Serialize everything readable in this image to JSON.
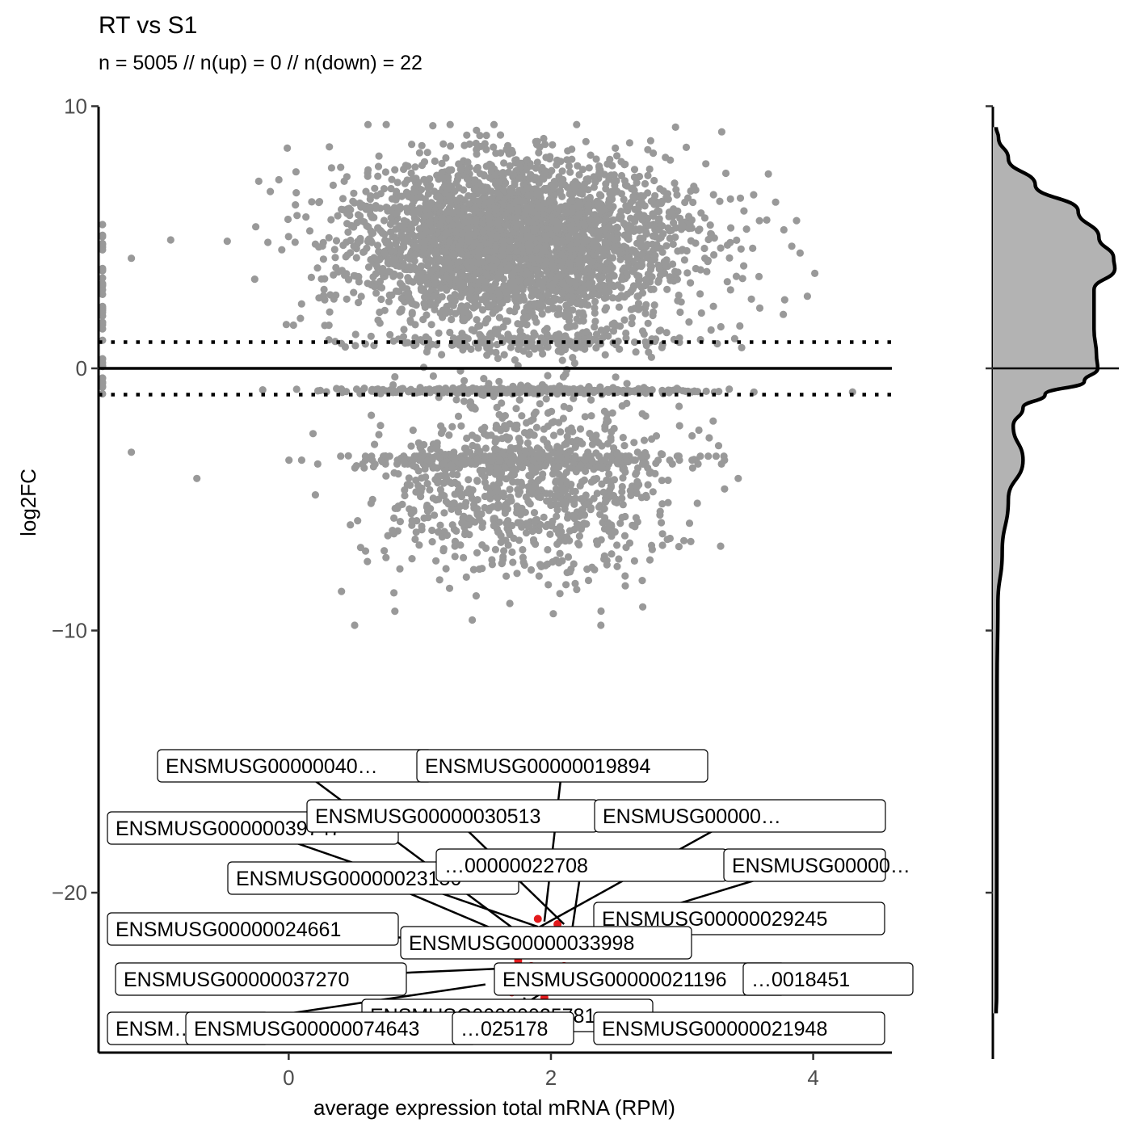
{
  "chart_data": {
    "type": "scatter",
    "title": "RT vs S1",
    "subtitle": "n = 5005 // n(up) = 0 // n(down) = 22",
    "xlabel": "average expression total mRNA (RPM)",
    "ylabel": "log2FC",
    "xlim": [
      -1.45,
      4.6
    ],
    "ylim": [
      -26.1,
      10.6
    ],
    "x_ticks": [
      0,
      2,
      4
    ],
    "y_ticks": [
      -20,
      -10,
      0,
      10
    ],
    "x_tick_labels": [
      "0",
      "2",
      "4"
    ],
    "y_tick_labels": [
      "10",
      "0",
      "−10",
      "−20"
    ],
    "grid": false,
    "reference_lines": {
      "solid": [
        0
      ],
      "dotted": [
        1,
        -1
      ]
    },
    "colors": {
      "not_significant": "#999999",
      "down": "#e31a1c",
      "density_fill": "#b3b3b3",
      "line": "#000000"
    },
    "background_points": {
      "n": 5005,
      "cloud_up": {
        "center_x": 1.75,
        "center_y": 4.8,
        "sd_x": 0.65,
        "sd_y": 1.6
      },
      "cloud_down": {
        "center_x": 1.8,
        "center_y": -4.5,
        "sd_x": 0.55,
        "sd_y": 1.8
      },
      "examples": [
        {
          "x": 2.95,
          "y": 9.2
        },
        {
          "x": 2.6,
          "y": 8.6
        },
        {
          "x": 3.9,
          "y": 4.4
        },
        {
          "x": 1.4,
          "y": -9.6
        },
        {
          "x": 2.7,
          "y": -9.1
        },
        {
          "x": -1.2,
          "y": 4.2
        },
        {
          "x": -1.2,
          "y": -3.2
        },
        {
          "x": -0.7,
          "y": -4.2
        },
        {
          "x": 4.3,
          "y": -0.9
        },
        {
          "x": -0.9,
          "y": 4.9
        }
      ]
    },
    "significant_points": [
      {
        "x": 1.9,
        "y": -21.0
      },
      {
        "x": 2.05,
        "y": -21.2
      },
      {
        "x": 1.75,
        "y": -22.6
      },
      {
        "x": 1.85,
        "y": -22.8
      },
      {
        "x": 2.1,
        "y": -22.8
      },
      {
        "x": 1.6,
        "y": -23.4
      },
      {
        "x": 1.7,
        "y": -23.8
      },
      {
        "x": 2.25,
        "y": -23.2
      },
      {
        "x": 1.95,
        "y": -24.0
      },
      {
        "x": 2.3,
        "y": -24.6
      }
    ],
    "gene_labels": [
      {
        "text": "ENSMUSG00000040…",
        "point": [
          1.75,
          -21.5
        ]
      },
      {
        "text": "ENSMUSG00000019894",
        "point": [
          1.95,
          -21.1
        ]
      },
      {
        "text": "ENSMUSG00000039747",
        "point": [
          1.9,
          -21.3
        ]
      },
      {
        "text": "ENSMUSG00000030513",
        "point": [
          2.1,
          -21.2
        ]
      },
      {
        "text": "ENSMUSG00000…",
        "point": [
          1.7,
          -21.9
        ]
      },
      {
        "text": "ENSMUSG00000023150",
        "point": [
          1.85,
          -22.0
        ]
      },
      {
        "text": "…00000022708",
        "point": [
          2.15,
          -21.8
        ]
      },
      {
        "text": "ENSMUSG00000…",
        "point": [
          1.8,
          -22.2
        ]
      },
      {
        "text": "ENSMUSG00000024661",
        "point": [
          2.2,
          -22.1
        ]
      },
      {
        "text": "ENSMUSG00000029245",
        "point": [
          1.8,
          -22.4
        ]
      },
      {
        "text": "ENSMUSG00000033998",
        "point": [
          1.95,
          -22.5
        ]
      },
      {
        "text": "ENSMUSG00000037270",
        "point": [
          1.6,
          -22.9
        ]
      },
      {
        "text": "ENSMUSG00000021196",
        "point": [
          1.65,
          -23.3
        ]
      },
      {
        "text": "…0018451",
        "point": [
          2.1,
          -22.9
        ]
      },
      {
        "text": "ENSMUSG00000025781",
        "point": [
          2.0,
          -23.6
        ]
      },
      {
        "text": "ENSM…",
        "point": [
          1.5,
          -23.5
        ]
      },
      {
        "text": "ENSMUSG00000074643",
        "point": [
          1.45,
          -24.2
        ]
      },
      {
        "text": "…025178",
        "point": [
          1.8,
          -24.0
        ]
      },
      {
        "text": "ENSMUSG00000021948",
        "point": [
          2.3,
          -24.4
        ]
      }
    ],
    "density": {
      "orientation": "vertical",
      "y": [
        9.2,
        8.8,
        8.0,
        7.0,
        6.0,
        5.0,
        4.2,
        3.8,
        3.0,
        2.4,
        1.5,
        0.5,
        0.0,
        -0.5,
        -1.0,
        -1.5,
        -2.2,
        -3.5,
        -5.0,
        -7.0,
        -9.0,
        -12.0,
        -20.0,
        -24.0,
        -24.6
      ],
      "density": [
        0.0,
        0.02,
        0.1,
        0.32,
        0.67,
        0.84,
        0.96,
        0.97,
        0.8,
        0.8,
        0.8,
        0.82,
        0.83,
        0.72,
        0.4,
        0.22,
        0.14,
        0.22,
        0.1,
        0.05,
        0.015,
        0.008,
        0.006,
        0.004,
        0.0
      ]
    }
  }
}
